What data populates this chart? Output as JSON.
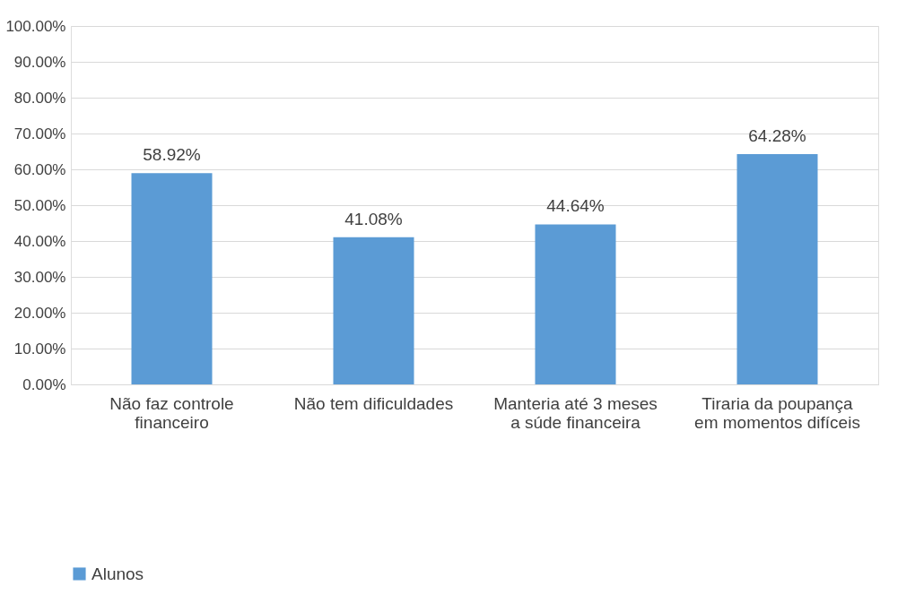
{
  "chart_data": {
    "type": "bar",
    "categories": [
      "Não faz controle financeiro",
      "Não tem dificuldades",
      "Manteria até 3 meses a súde financeira",
      "Tiraria da poupança em momentos difíceis"
    ],
    "series": [
      {
        "name": "Alunos",
        "color": "#5b9bd5",
        "values": [
          58.92,
          41.08,
          44.64,
          64.28
        ],
        "value_labels": [
          "58.92%",
          "41.08%",
          "44.64%",
          "64.28%"
        ]
      }
    ],
    "ylim": [
      0,
      100
    ],
    "yticks": [
      {
        "value": 0,
        "label": "0.00%"
      },
      {
        "value": 10,
        "label": "10.00%"
      },
      {
        "value": 20,
        "label": "20.00%"
      },
      {
        "value": 30,
        "label": "30.00%"
      },
      {
        "value": 40,
        "label": "40.00%"
      },
      {
        "value": 50,
        "label": "50.00%"
      },
      {
        "value": 60,
        "label": "60.00%"
      },
      {
        "value": 70,
        "label": "70.00%"
      },
      {
        "value": 80,
        "label": "80.00%"
      },
      {
        "value": 90,
        "label": "90.00%"
      },
      {
        "value": 100,
        "label": "100.00%"
      }
    ],
    "grid": "y",
    "legend": "bottom"
  }
}
